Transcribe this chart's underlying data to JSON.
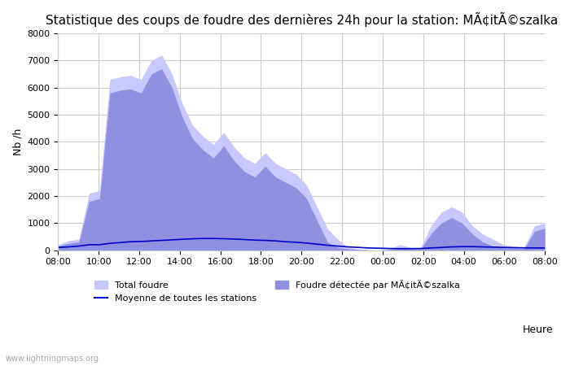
{
  "title": "Statistique des coups de foudre des dernières 24h pour la station: MÃ¢itÃ©szalka",
  "ylabel": "Nb /h",
  "xlabel_right": "Heure",
  "watermark": "www.lightningmaps.org",
  "ylim": [
    0,
    8000
  ],
  "yticks": [
    0,
    1000,
    2000,
    3000,
    4000,
    5000,
    6000,
    7000,
    8000
  ],
  "x_labels": [
    "08:00",
    "10:00",
    "12:00",
    "14:00",
    "16:00",
    "18:00",
    "20:00",
    "22:00",
    "00:00",
    "02:00",
    "04:00",
    "06:00",
    "08:00"
  ],
  "total_foudre_color": "#c8c8ff",
  "total_foudre_edge": "#c8c8ff",
  "detected_foudre_color": "#9090e0",
  "moyenne_color": "#0000cc",
  "legend_label_total": "Total foudre",
  "legend_label_detected": "Foudre détectée par MÃ¢itÃ©szalka",
  "legend_label_moyenne": "Moyenne de toutes les stations",
  "total_foudre": [
    200,
    350,
    400,
    2100,
    2200,
    6300,
    6400,
    6450,
    6300,
    7000,
    7200,
    6500,
    5400,
    4600,
    4200,
    3900,
    4350,
    3800,
    3400,
    3200,
    3600,
    3200,
    3000,
    2800,
    2400,
    1600,
    800,
    400,
    100,
    50,
    10,
    5,
    50,
    200,
    100,
    80,
    900,
    1400,
    1600,
    1400,
    900,
    600,
    400,
    200,
    150,
    100,
    900,
    1000
  ],
  "detected_foudre": [
    150,
    250,
    300,
    1800,
    1900,
    5800,
    5900,
    5950,
    5800,
    6500,
    6700,
    6000,
    4900,
    4100,
    3700,
    3400,
    3850,
    3300,
    2900,
    2700,
    3100,
    2700,
    2500,
    2300,
    1900,
    1100,
    300,
    100,
    50,
    20,
    5,
    2,
    20,
    80,
    50,
    40,
    600,
    1000,
    1200,
    1000,
    600,
    300,
    150,
    80,
    60,
    50,
    700,
    800
  ],
  "moyenne": [
    100,
    120,
    150,
    200,
    200,
    250,
    280,
    310,
    320,
    340,
    360,
    380,
    400,
    420,
    430,
    430,
    420,
    410,
    390,
    370,
    360,
    340,
    310,
    290,
    260,
    220,
    180,
    150,
    120,
    100,
    80,
    70,
    60,
    55,
    55,
    60,
    80,
    100,
    120,
    130,
    130,
    120,
    110,
    100,
    90,
    85,
    80,
    80
  ],
  "background_color": "#ffffff",
  "grid_color": "#cccccc",
  "title_fontsize": 11,
  "axis_fontsize": 9,
  "tick_fontsize": 8
}
